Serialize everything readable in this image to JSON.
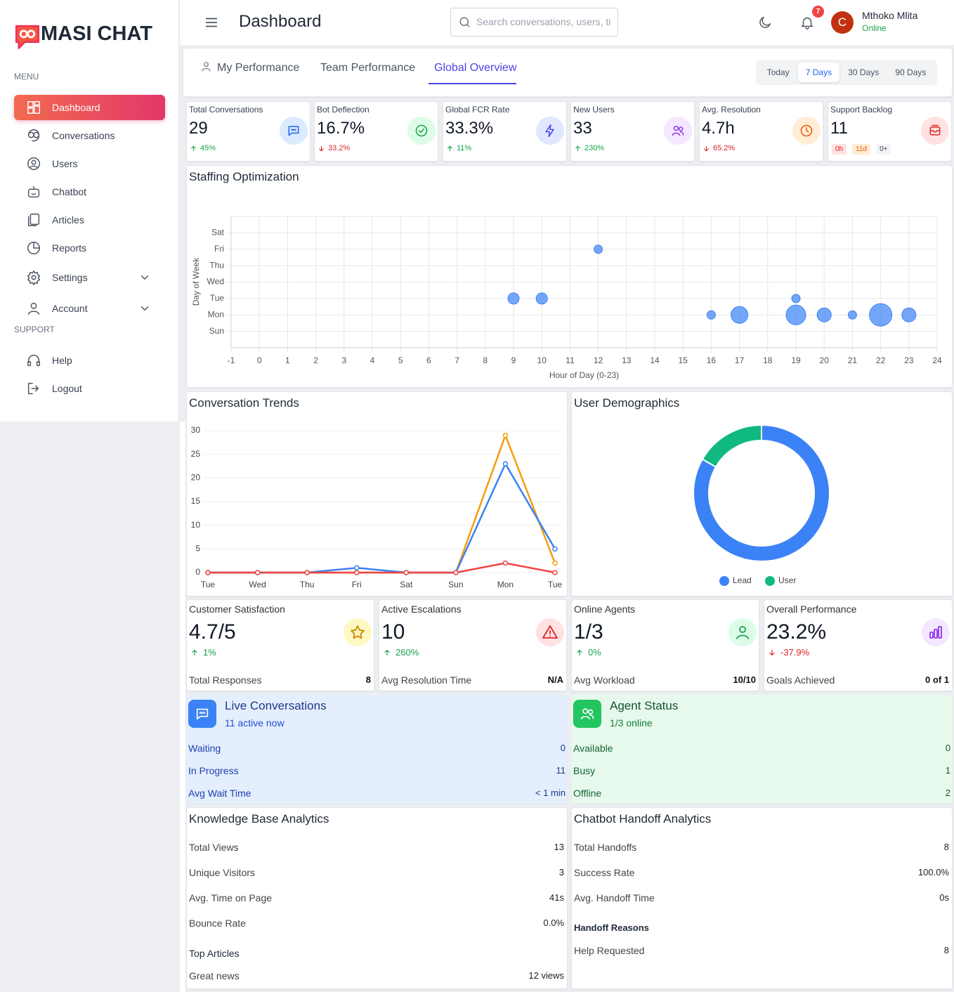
{
  "sidebar": {
    "brand": "MASI CHAT",
    "menu_label": "MENU",
    "menu": [
      "Dashboard",
      "Conversations",
      "Users",
      "Chatbot",
      "Articles",
      "Reports",
      "Settings",
      "Account"
    ],
    "active": 0,
    "support_label": "SUPPORT",
    "support": [
      "Help",
      "Logout"
    ]
  },
  "header": {
    "title": "Dashboard",
    "search_placeholder": "Search conversations, users, ti",
    "notification_count": "7",
    "avatar_initial": "C",
    "user_name": "Mthoko Mlita",
    "user_status": "Online"
  },
  "tabs": {
    "items": [
      "My Performance",
      "Team Performance",
      "Global Overview"
    ],
    "active": 2,
    "ranges": [
      "Today",
      "7 Days",
      "30 Days",
      "90 Days"
    ],
    "active_range": 1
  },
  "kpis": [
    {
      "label": "Total Conversations",
      "value": "29",
      "change": "45%",
      "trend": "up"
    },
    {
      "label": "Bot Deflection",
      "value": "16.7%",
      "change": "33.2%",
      "trend": "down"
    },
    {
      "label": "Global FCR Rate",
      "value": "33.3%",
      "change": "11%",
      "trend": "up"
    },
    {
      "label": "New Users",
      "value": "33",
      "change": "230%",
      "trend": "up"
    },
    {
      "label": "Avg. Resolution",
      "value": "4.7h",
      "change": "65.2%",
      "trend": "down"
    },
    {
      "label": "Support Backlog",
      "value": "11",
      "chips": [
        "0h",
        "11d",
        "0+"
      ]
    }
  ],
  "chart_data": [
    {
      "type": "bubble",
      "title": "Staffing Optimization",
      "x_label": "Hour of Day (0-23)",
      "y_label": "Day of Week",
      "xlim": [
        -1,
        24
      ],
      "xticks": [
        -1,
        0,
        1,
        2,
        3,
        4,
        5,
        6,
        7,
        8,
        9,
        10,
        11,
        12,
        13,
        14,
        15,
        16,
        17,
        18,
        19,
        20,
        21,
        22,
        23,
        24
      ],
      "ylim": [
        -1,
        7
      ],
      "yticks": [
        {
          "value": 0,
          "label": "Sun"
        },
        {
          "value": 1,
          "label": "Mon"
        },
        {
          "value": 2,
          "label": "Tue"
        },
        {
          "value": 3,
          "label": "Wed"
        },
        {
          "value": 4,
          "label": "Thu"
        },
        {
          "value": 5,
          "label": "Fri"
        },
        {
          "value": 6,
          "label": "Sat"
        }
      ],
      "grid": true,
      "color": "#3b82f6",
      "x": [
        12,
        9,
        10,
        16,
        17,
        19,
        19,
        20,
        21,
        22,
        23
      ],
      "values": [
        5,
        2,
        2,
        1,
        1,
        2,
        1,
        1,
        1,
        1,
        1
      ],
      "sizes": [
        6,
        8,
        8,
        6,
        12,
        6,
        14,
        10,
        6,
        16,
        10
      ]
    },
    {
      "type": "line",
      "title": "Conversation Trends",
      "categories": [
        "Tue",
        "Wed",
        "Thu",
        "Fri",
        "Sat",
        "Sun",
        "Mon",
        "Tue"
      ],
      "ylim": [
        0,
        30
      ],
      "yticks": [
        0,
        5,
        10,
        15,
        20,
        25,
        30
      ],
      "grid": true,
      "series": [
        {
          "color": "#f59e0b",
          "values": [
            0,
            0,
            0,
            0,
            0,
            0,
            29,
            2
          ]
        },
        {
          "color": "#3b82f6",
          "values": [
            0,
            0,
            0,
            1,
            0,
            0,
            23,
            5
          ]
        },
        {
          "color": "#ef4444",
          "values": [
            0,
            0,
            0,
            0,
            0,
            0,
            2,
            0
          ]
        }
      ]
    },
    {
      "type": "doughnut",
      "title": "User Demographics",
      "categories": [
        "Lead",
        "User"
      ],
      "values": [
        83.3,
        16.7
      ],
      "colors": [
        "#3b82f6",
        "#10b981"
      ],
      "legend": "bottom"
    }
  ],
  "metrics": [
    {
      "label": "Customer Satisfaction",
      "value": "4.7/5",
      "change": "1%",
      "trend": "up",
      "footer_label": "Total Responses",
      "footer_value": "8"
    },
    {
      "label": "Active Escalations",
      "value": "10",
      "change": "260%",
      "trend": "up",
      "footer_label": "Avg Resolution Time",
      "footer_value": "N/A"
    },
    {
      "label": "Online Agents",
      "value": "1/3",
      "change": "0%",
      "trend": "up",
      "footer_label": "Avg Workload",
      "footer_value": "10/10"
    },
    {
      "label": "Overall Performance",
      "value": "23.2%",
      "change": "-37.9%",
      "trend": "down",
      "footer_label": "Goals Achieved",
      "footer_value": "0 of 1"
    }
  ],
  "live_conversations": {
    "title": "Live Conversations",
    "subtitle": "11 active now",
    "rows": [
      [
        "Waiting",
        "0"
      ],
      [
        "In Progress",
        "11"
      ],
      [
        "Avg Wait Time",
        "< 1 min"
      ]
    ]
  },
  "agent_status": {
    "title": "Agent Status",
    "subtitle": "1/3 online",
    "rows": [
      [
        "Available",
        "0"
      ],
      [
        "Busy",
        "1"
      ],
      [
        "Offline",
        "2"
      ]
    ]
  },
  "knowledge_base": {
    "title": "Knowledge Base Analytics",
    "rows": [
      [
        "Total Views",
        "13"
      ],
      [
        "Unique Visitors",
        "3"
      ],
      [
        "Avg. Time on Page",
        "41s"
      ],
      [
        "Bounce Rate",
        "0.0%"
      ]
    ],
    "top_articles_label": "Top Articles",
    "articles": [
      [
        "Great news",
        "12 views"
      ]
    ]
  },
  "handoff": {
    "title": "Chatbot Handoff Analytics",
    "rows": [
      [
        "Total Handoffs",
        "8"
      ],
      [
        "Success Rate",
        "100.0%"
      ],
      [
        "Avg. Handoff Time",
        "0s"
      ]
    ],
    "reasons_label": "Handoff Reasons",
    "reasons": [
      [
        "Help Requested",
        "8"
      ]
    ]
  }
}
